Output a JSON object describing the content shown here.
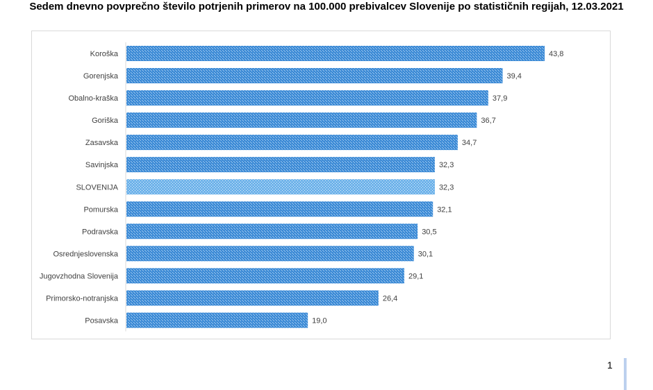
{
  "chart_data": {
    "type": "bar",
    "orientation": "horizontal",
    "title": "Sedem dnevno povprečno število potrjenih primerov na 100.000 prebivalcev Slovenije po statističnih regijah, 12.03.2021",
    "categories": [
      "Koroška",
      "Gorenjska",
      "Obalno-kraška",
      "Goriška",
      "Zasavska",
      "Savinjska",
      "SLOVENIJA",
      "Pomurska",
      "Podravska",
      "Osrednjeslovenska",
      "Jugovzhodna Slovenija",
      "Primorsko-notranjska",
      "Posavska"
    ],
    "values": [
      43.8,
      39.4,
      37.9,
      36.7,
      34.7,
      32.3,
      32.3,
      32.1,
      30.5,
      30.1,
      29.1,
      26.4,
      19.0
    ],
    "value_labels": [
      "43,8",
      "39,4",
      "37,9",
      "36,7",
      "34,7",
      "32,3",
      "32,3",
      "32,1",
      "30,5",
      "30,1",
      "29,1",
      "26,4",
      "19,0"
    ],
    "highlight_category": "SLOVENIJA",
    "xlabel": "",
    "ylabel": "",
    "xlim": [
      0,
      43.8
    ],
    "grid": false,
    "legend": "none",
    "colors": {
      "bar_dark": "#3d8bd6",
      "bar_light": "#a7cdf0",
      "highlight_dark": "#6fb3ea",
      "highlight_light": "#e4f1fc",
      "axis": "#d9d9d9",
      "label": "#404040"
    }
  },
  "page": {
    "number": "1"
  }
}
